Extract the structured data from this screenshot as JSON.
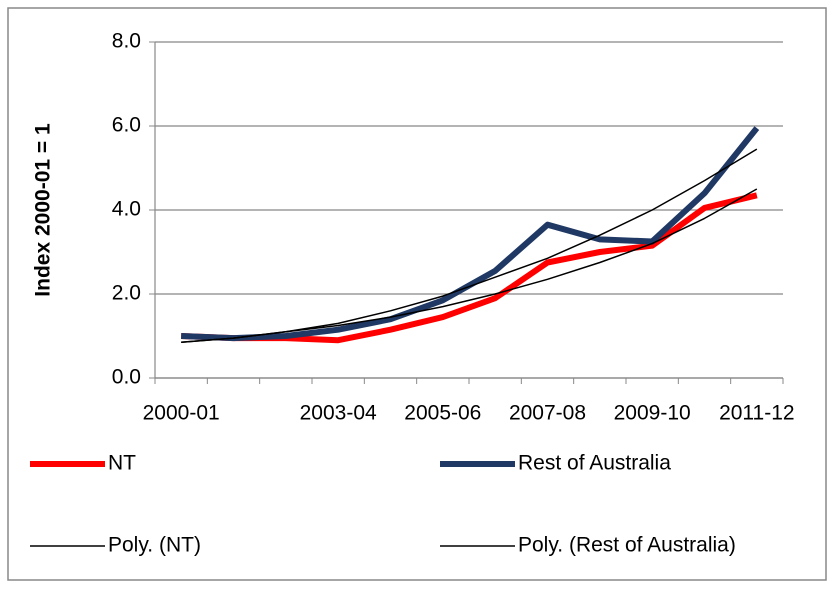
{
  "chart_data": {
    "type": "line",
    "y_label": "Index 2000-01 = 1",
    "categories": [
      "2000-01",
      null,
      null,
      "2003-04",
      null,
      "2005-06",
      null,
      "2007-08",
      null,
      "2009-10",
      null,
      "2011-12"
    ],
    "series": [
      {
        "name": "NT",
        "color": "#ff0000",
        "width": 6,
        "values": [
          1.0,
          0.95,
          0.95,
          0.9,
          1.15,
          1.45,
          1.9,
          2.75,
          3.0,
          3.15,
          4.05,
          4.35
        ]
      },
      {
        "name": "Rest of Australia",
        "color": "#1f3864",
        "width": 6,
        "values": [
          1.0,
          0.95,
          1.0,
          1.15,
          1.4,
          1.85,
          2.55,
          3.65,
          3.3,
          3.25,
          4.4,
          5.95
        ]
      },
      {
        "name": "Poly. (NT)",
        "color": "#000000",
        "width": 1.5,
        "values": [
          0.85,
          0.95,
          1.1,
          1.25,
          1.45,
          1.7,
          2.0,
          2.35,
          2.75,
          3.2,
          3.8,
          4.5
        ]
      },
      {
        "name": "Poly. (Rest of Australia)",
        "color": "#000000",
        "width": 1.5,
        "values": [
          0.85,
          0.95,
          1.1,
          1.3,
          1.6,
          1.95,
          2.4,
          2.85,
          3.4,
          4.0,
          4.7,
          5.45
        ]
      }
    ],
    "ylim": [
      0,
      8
    ],
    "yticks": [
      {
        "value": 0,
        "label": "0.0"
      },
      {
        "value": 2,
        "label": "2.0"
      },
      {
        "value": 4,
        "label": "4.0"
      },
      {
        "value": 6,
        "label": "6.0"
      },
      {
        "value": 8,
        "label": "8.0"
      }
    ],
    "grid": true,
    "legend": "bottom"
  }
}
